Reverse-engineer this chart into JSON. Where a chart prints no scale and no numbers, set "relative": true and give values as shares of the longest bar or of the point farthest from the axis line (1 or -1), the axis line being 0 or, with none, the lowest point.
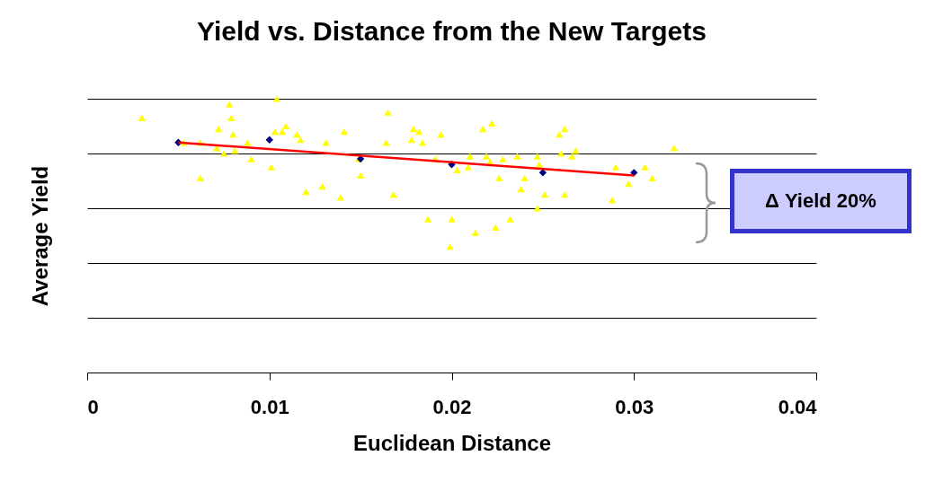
{
  "chart_data": {
    "type": "scatter",
    "title": "Yield vs. Distance from the New Targets",
    "xlabel": "Euclidean Distance",
    "ylabel": "Average Yield",
    "relative": true,
    "grid": "y",
    "xlim": [
      0,
      0.04
    ],
    "xticks": [
      0,
      0.01,
      0.02,
      0.03,
      0.04
    ],
    "annotations": [
      "Δ Yield 20%"
    ],
    "series": [
      {
        "marker": "triangle",
        "color": "#ffff00",
        "x": [
          0.003,
          0.0053,
          0.0062,
          0.0062,
          0.0071,
          0.0072,
          0.0075,
          0.0078,
          0.0079,
          0.008,
          0.0081,
          0.0088,
          0.009,
          0.0101,
          0.0103,
          0.0104,
          0.0107,
          0.0109,
          0.0115,
          0.0117,
          0.012,
          0.0129,
          0.0131,
          0.0139,
          0.0141,
          0.0149,
          0.015,
          0.0165,
          0.0168,
          0.0164,
          0.0179,
          0.0182,
          0.0178,
          0.0184,
          0.0187,
          0.0191,
          0.0194,
          0.0199,
          0.02,
          0.0203,
          0.0209,
          0.021,
          0.0217,
          0.0213,
          0.0222,
          0.0219,
          0.0221,
          0.0224,
          0.0226,
          0.0228,
          0.0232,
          0.0236,
          0.0238,
          0.024,
          0.0247,
          0.0247,
          0.0248,
          0.0251,
          0.0259,
          0.0262,
          0.026,
          0.0262,
          0.0266,
          0.0268,
          0.0288,
          0.029,
          0.0297,
          0.0306,
          0.031,
          0.0322
        ],
        "values": [
          0.93,
          0.84,
          0.71,
          0.84,
          0.82,
          0.89,
          0.8,
          0.98,
          0.93,
          0.87,
          0.81,
          0.84,
          0.78,
          0.75,
          0.88,
          1.0,
          0.88,
          0.9,
          0.87,
          0.85,
          0.66,
          0.68,
          0.84,
          0.64,
          0.88,
          0.78,
          0.72,
          0.95,
          0.65,
          0.84,
          0.89,
          0.88,
          0.85,
          0.84,
          0.56,
          0.78,
          0.87,
          0.46,
          0.56,
          0.74,
          0.75,
          0.79,
          0.89,
          0.51,
          0.91,
          0.79,
          0.77,
          0.53,
          0.71,
          0.78,
          0.56,
          0.79,
          0.67,
          0.71,
          0.79,
          0.6,
          0.76,
          0.65,
          0.87,
          0.89,
          0.8,
          0.65,
          0.79,
          0.81,
          0.63,
          0.75,
          0.69,
          0.75,
          0.71,
          0.82
        ]
      },
      {
        "marker": "diamond",
        "color": "#000080",
        "x": [
          0.005,
          0.01,
          0.015,
          0.02,
          0.025,
          0.03
        ],
        "values": [
          0.84,
          0.85,
          0.78,
          0.76,
          0.73,
          0.73
        ]
      },
      {
        "type": "line",
        "color": "#ff0000",
        "x": [
          0.005,
          0.03
        ],
        "values": [
          0.84,
          0.72
        ]
      }
    ]
  }
}
